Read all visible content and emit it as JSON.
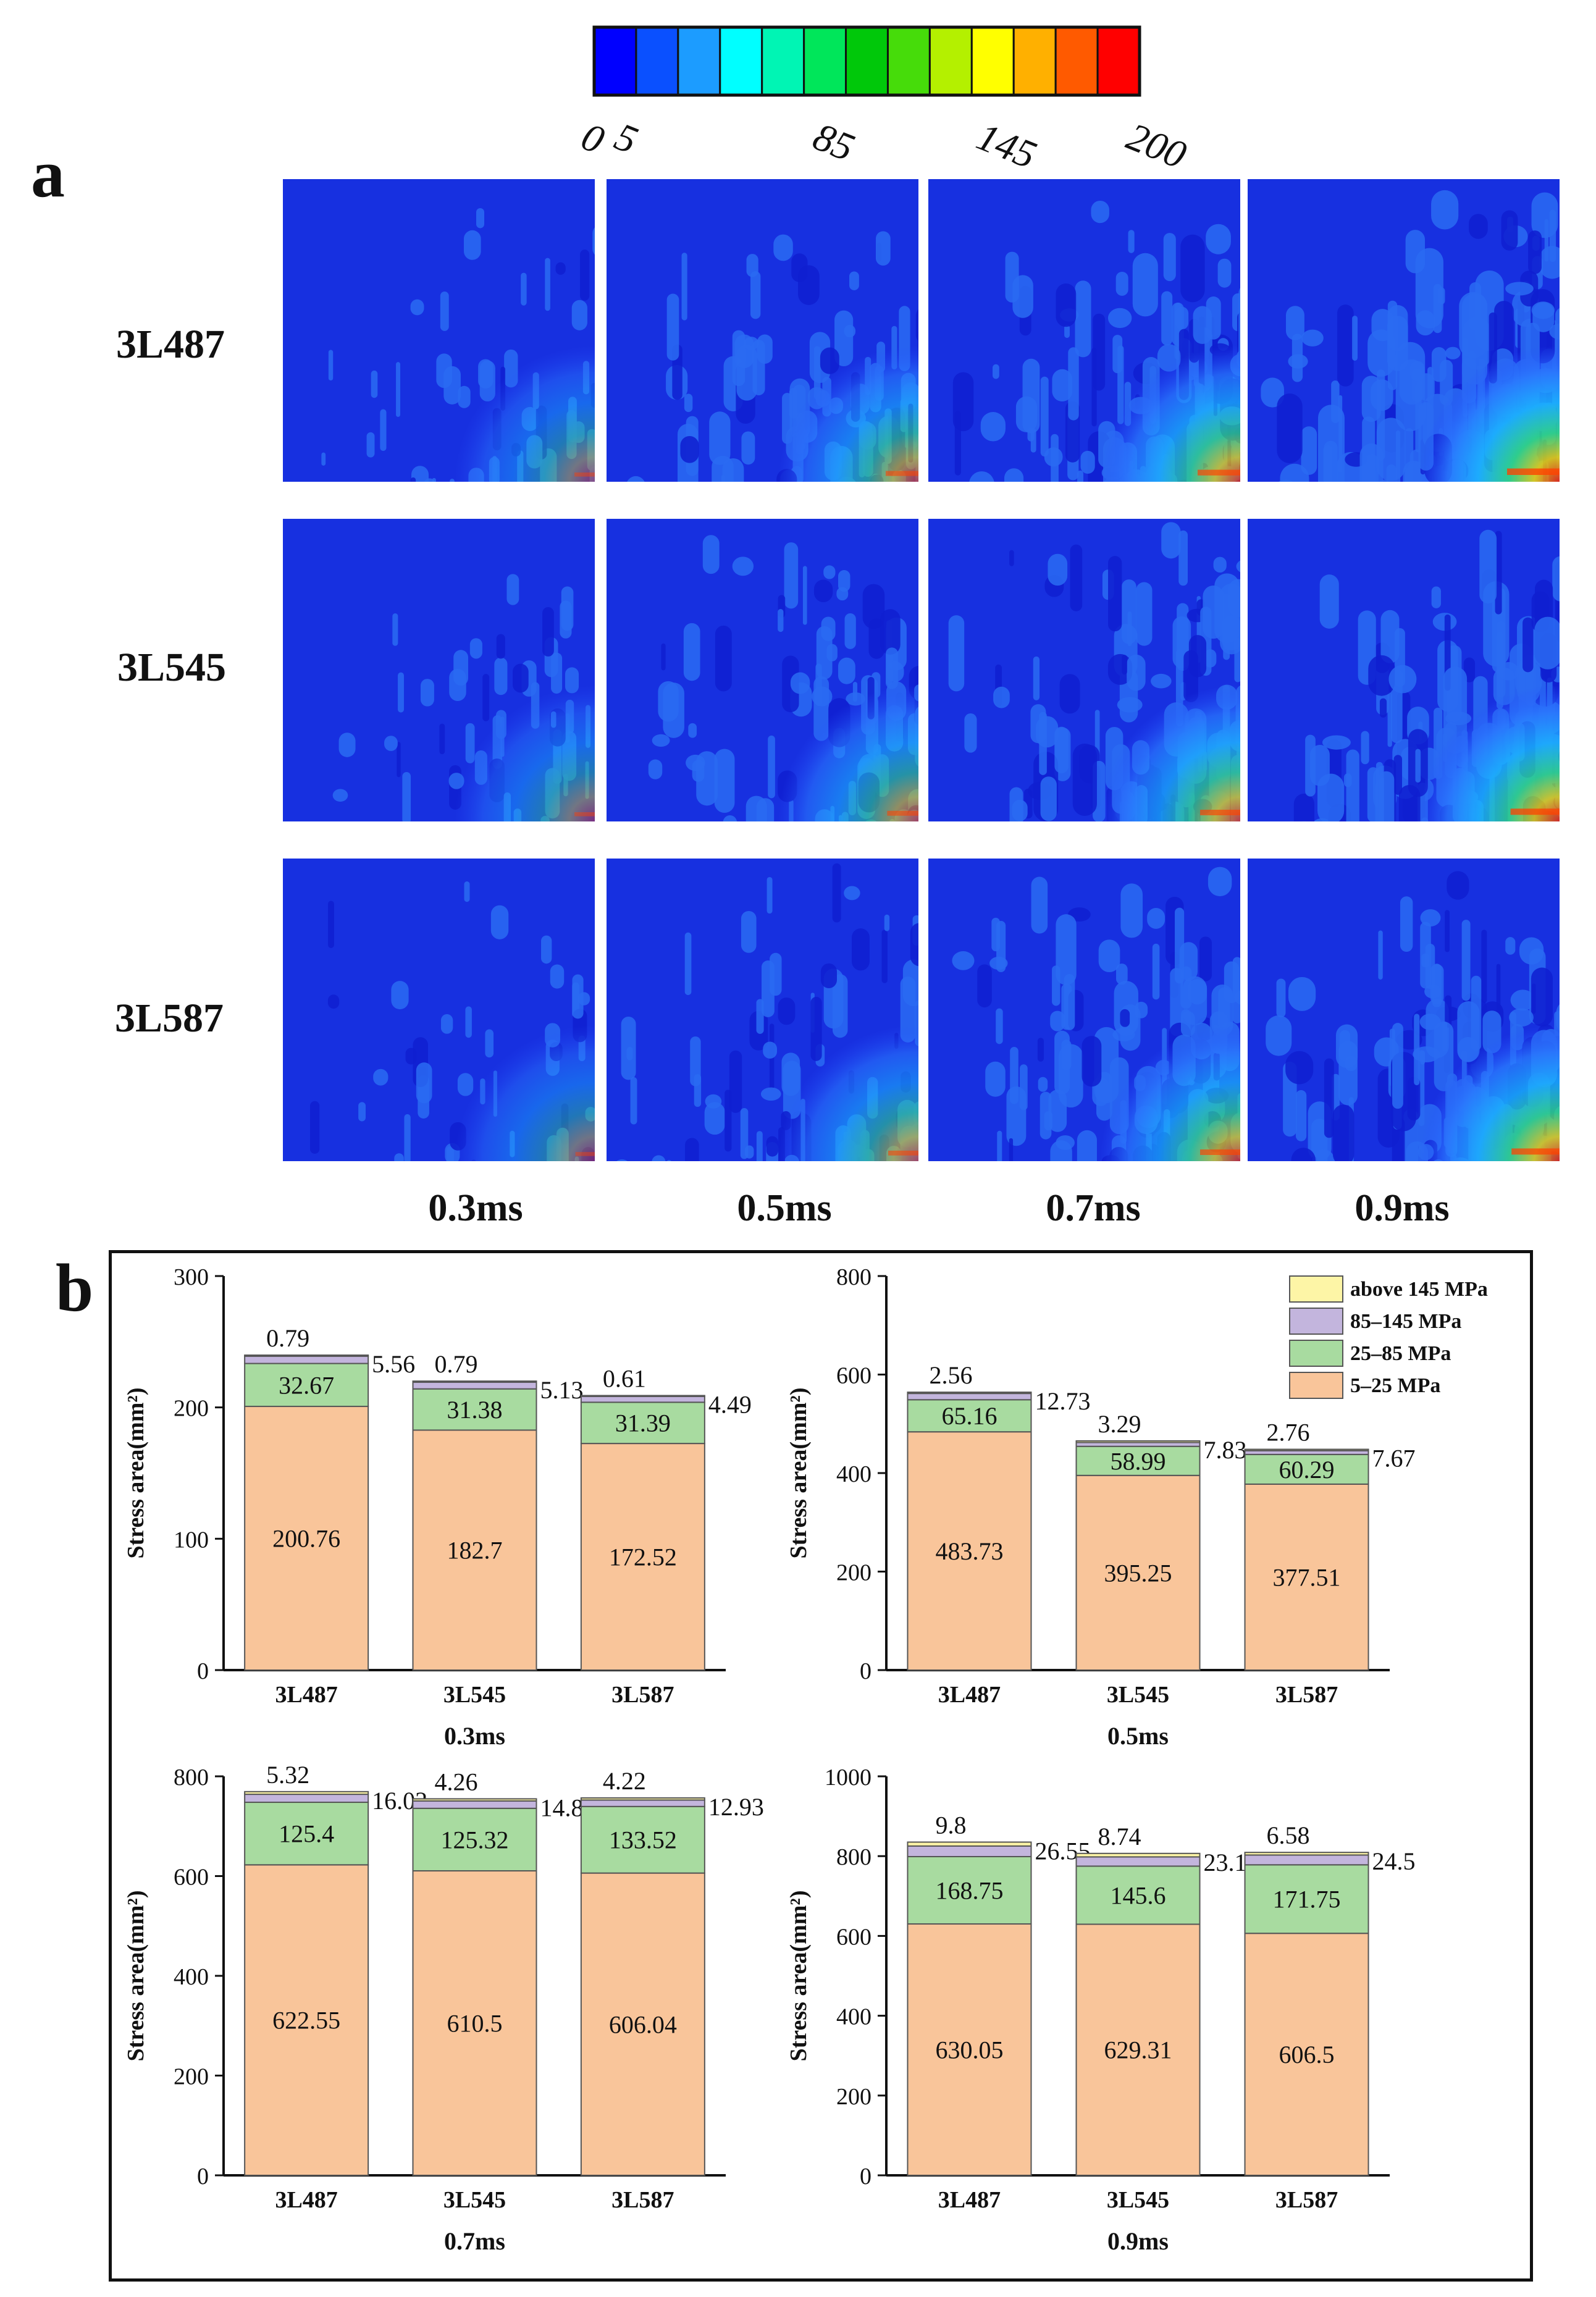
{
  "panel_a": {
    "letter": "a",
    "colorbar": {
      "tick_labels": [
        "0",
        "5",
        "85",
        "145",
        "200"
      ],
      "tick_values": [
        0,
        5,
        85,
        145,
        200
      ],
      "colors": [
        "#0000ff",
        "#0a50ff",
        "#1c9cff",
        "#00ffff",
        "#00f5b4",
        "#00e65a",
        "#00c80a",
        "#46dc0a",
        "#b4f000",
        "#ffff00",
        "#ffb000",
        "#ff5a00",
        "#ff0000"
      ]
    },
    "row_labels": [
      "3L487",
      "3L545",
      "3L587"
    ],
    "time_labels": [
      "0.3ms",
      "0.5ms",
      "0.7ms",
      "0.9ms"
    ],
    "stress_levels": [
      [
        0.1,
        0.35,
        0.55,
        0.75
      ],
      [
        0.1,
        0.32,
        0.5,
        0.68
      ],
      [
        0.08,
        0.3,
        0.5,
        0.66
      ]
    ]
  },
  "panel_b": {
    "letter": "b"
  },
  "chart_data": [
    {
      "type": "bar",
      "stacked": true,
      "title": "0.3ms",
      "ylabel": "Stress area(mm²)",
      "categories": [
        "3L487",
        "3L545",
        "3L587"
      ],
      "ylim": [
        0,
        300
      ],
      "yticks": [
        0,
        100,
        200,
        300
      ],
      "series": [
        {
          "name": "5–25 MPa",
          "values": [
            200.76,
            182.7,
            172.52
          ]
        },
        {
          "name": "25–85 MPa",
          "values": [
            32.67,
            31.38,
            31.39
          ]
        },
        {
          "name": "85–145 MPa",
          "values": [
            5.56,
            5.13,
            4.49
          ]
        },
        {
          "name": "above 145 MPa",
          "values": [
            0.79,
            0.79,
            0.61
          ]
        }
      ],
      "value_labels": {
        "5–25 MPa": [
          "200.76",
          "182.7",
          "172.52"
        ],
        "25–85 MPa": [
          "32.67",
          "31.38",
          "31.39"
        ],
        "85–145 MPa": [
          "5.56",
          "5.13",
          "4.49"
        ],
        "above 145 MPa": [
          "0.79",
          "0.79",
          "0.61"
        ]
      }
    },
    {
      "type": "bar",
      "stacked": true,
      "title": "0.5ms",
      "ylabel": "Stress area(mm²)",
      "categories": [
        "3L487",
        "3L545",
        "3L587"
      ],
      "ylim": [
        0,
        800
      ],
      "yticks": [
        0,
        200,
        400,
        600,
        800
      ],
      "legend": {
        "position": "top-right",
        "entries": [
          "above 145 MPa",
          "85–145 MPa",
          "25–85 MPa",
          "5–25 MPa"
        ]
      },
      "series": [
        {
          "name": "5–25 MPa",
          "values": [
            483.73,
            395.25,
            377.51
          ]
        },
        {
          "name": "25–85 MPa",
          "values": [
            65.16,
            58.99,
            60.29
          ]
        },
        {
          "name": "85–145 MPa",
          "values": [
            12.73,
            7.83,
            7.67
          ]
        },
        {
          "name": "above 145 MPa",
          "values": [
            2.56,
            3.29,
            2.76
          ]
        }
      ],
      "value_labels": {
        "5–25 MPa": [
          "483.73",
          "395.25",
          "377.51"
        ],
        "25–85 MPa": [
          "65.16",
          "58.99",
          "60.29"
        ],
        "85–145 MPa": [
          "12.73",
          "7.83",
          "7.67"
        ],
        "above 145 MPa": [
          "2.56",
          "3.29",
          "2.76"
        ]
      }
    },
    {
      "type": "bar",
      "stacked": true,
      "title": "0.7ms",
      "ylabel": "Stress area(mm²)",
      "categories": [
        "3L487",
        "3L545",
        "3L587"
      ],
      "ylim": [
        0,
        800
      ],
      "yticks": [
        0,
        200,
        400,
        600,
        800
      ],
      "series": [
        {
          "name": "5–25 MPa",
          "values": [
            622.55,
            610.5,
            606.04
          ]
        },
        {
          "name": "25–85 MPa",
          "values": [
            125.4,
            125.32,
            133.52
          ]
        },
        {
          "name": "85–145 MPa",
          "values": [
            16.02,
            14.82,
            12.93
          ]
        },
        {
          "name": "above 145 MPa",
          "values": [
            5.32,
            4.26,
            4.22
          ]
        }
      ],
      "value_labels": {
        "5–25 MPa": [
          "622.55",
          "610.5",
          "606.04"
        ],
        "25–85 MPa": [
          "125.4",
          "125.32",
          "133.52"
        ],
        "85–145 MPa": [
          "16.02",
          "14.82",
          "12.93"
        ],
        "above 145 MPa": [
          "5.32",
          "4.26",
          "4.22"
        ]
      }
    },
    {
      "type": "bar",
      "stacked": true,
      "title": "0.9ms",
      "ylabel": "Stress area(mm²)",
      "categories": [
        "3L487",
        "3L545",
        "3L587"
      ],
      "ylim": [
        0,
        1000
      ],
      "yticks": [
        0,
        200,
        400,
        600,
        800,
        1000
      ],
      "series": [
        {
          "name": "5–25 MPa",
          "values": [
            630.05,
            629.31,
            606.5
          ]
        },
        {
          "name": "25–85 MPa",
          "values": [
            168.75,
            145.6,
            171.75
          ]
        },
        {
          "name": "85–145 MPa",
          "values": [
            26.55,
            23.17,
            24.5
          ]
        },
        {
          "name": "above 145 MPa",
          "values": [
            9.8,
            8.74,
            6.58
          ]
        }
      ],
      "value_labels": {
        "5–25 MPa": [
          "630.05",
          "629.31",
          "606.5"
        ],
        "25–85 MPa": [
          "168.75",
          "145.6",
          "171.75"
        ],
        "85–145 MPa": [
          "26.55",
          "23.17",
          "24.5"
        ],
        "above 145 MPa": [
          "9.8",
          "8.74",
          "6.58"
        ]
      }
    }
  ],
  "series_colors": {
    "5–25 MPa": "#f9c59a",
    "25–85 MPa": "#a8dba0",
    "85–145 MPa": "#c3b5dd",
    "above 145 MPa": "#fdf5a6"
  }
}
